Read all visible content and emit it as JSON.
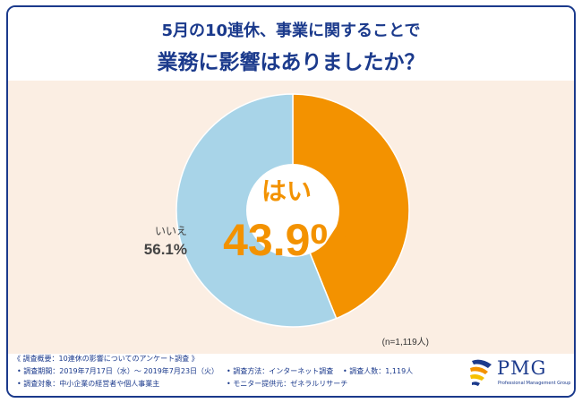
{
  "header": {
    "title_line1": "5月の10連休、事業に関することで",
    "title_line2": "業務に影響はありましたか？"
  },
  "chart_data": {
    "type": "pie",
    "style": "donut",
    "slices": [
      {
        "label": "はい",
        "value": 43.9,
        "value_label": "43.9%",
        "color": "#f39200"
      },
      {
        "label": "いいえ",
        "value": 56.1,
        "value_label": "56.1%",
        "color": "#a8d4e8"
      }
    ],
    "sample_note": "(n=1,119人)"
  },
  "footer": {
    "summary": "《 調査概要：10連休の影響についてのアンケート調査 》",
    "period": "• 調査期間：2019年7月17日（水）～ 2019年7月23日（火）",
    "method": "• 調査方法：インターネット調査",
    "count": "• 調査人数：1,119人",
    "target": "• 調査対象：中小企業の経営者や個人事業主",
    "provider": "• モニター提供元：ゼネラルリサーチ"
  },
  "logo": {
    "name": "PMG",
    "subtitle": "Professional Management Group",
    "colors": [
      "#1b3a8c",
      "#f39200",
      "#f6c000"
    ]
  }
}
